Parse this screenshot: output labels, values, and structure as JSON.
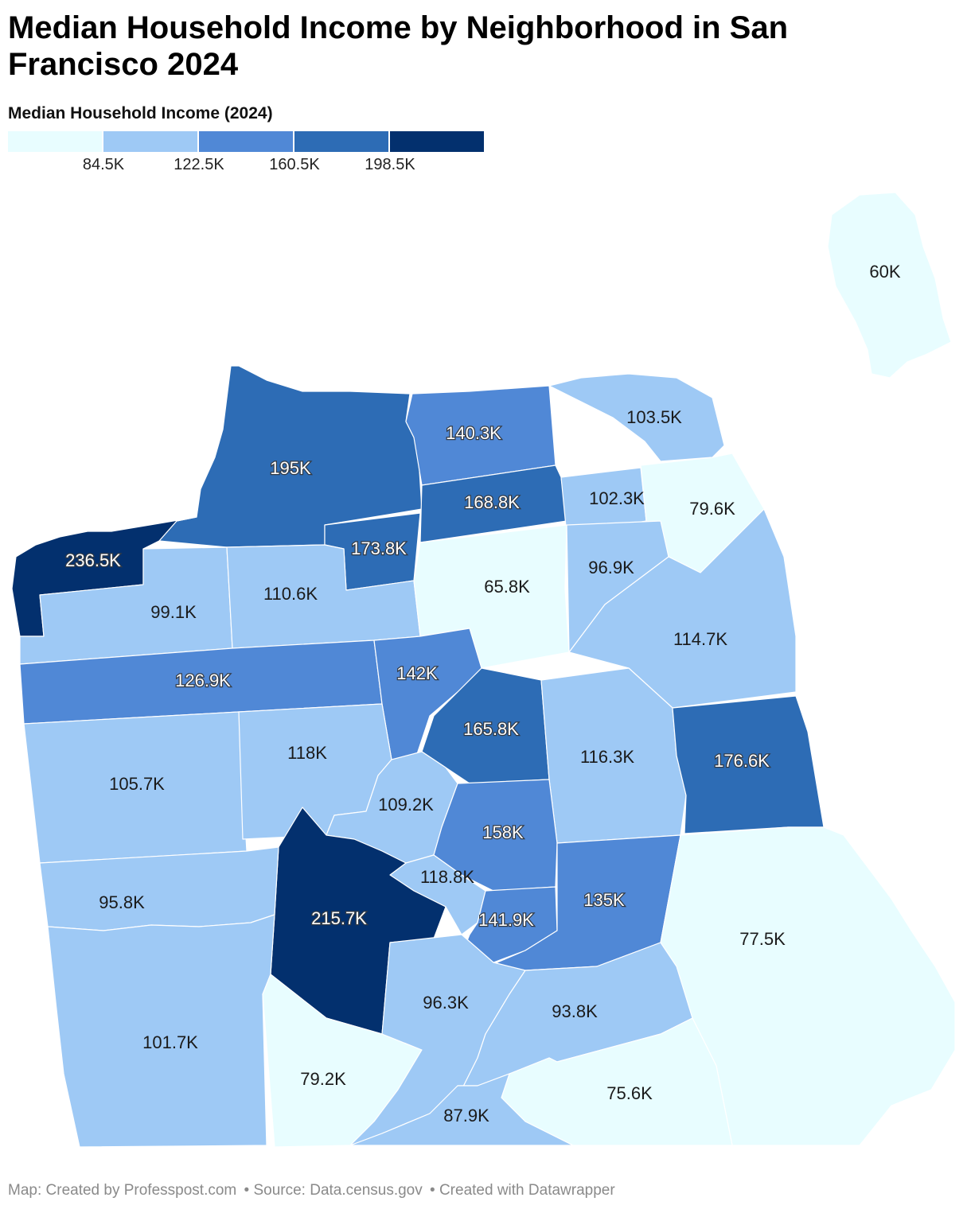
{
  "title": "Median Household Income by Neighborhood in San Francisco 2024",
  "legend": {
    "title": "Median Household Income (2024)",
    "colors": [
      "#e8fdff",
      "#9ec9f5",
      "#5088d6",
      "#2d6cb5",
      "#03306e"
    ],
    "ticks": [
      "84.5K",
      "122.5K",
      "160.5K",
      "198.5K"
    ]
  },
  "footer": {
    "map_credit": "Map: Created by Professpost.com",
    "source": "• Source: Data.census.gov",
    "tool": "• Created with Datawrapper"
  },
  "map_data": {
    "regions": [
      {
        "name": "island",
        "value": "60K"
      },
      {
        "name": "presidio",
        "value": "195K"
      },
      {
        "name": "sea-cliff",
        "value": "236.5K"
      },
      {
        "name": "marina",
        "value": "140.3K"
      },
      {
        "name": "north-beach",
        "value": "103.5K"
      },
      {
        "name": "pacific-heights",
        "value": "168.8K"
      },
      {
        "name": "nob-hill",
        "value": "102.3K"
      },
      {
        "name": "financial-district",
        "value": "79.6K"
      },
      {
        "name": "presidio-heights",
        "value": "173.8K"
      },
      {
        "name": "outer-richmond",
        "value": "99.1K"
      },
      {
        "name": "inner-richmond",
        "value": "110.6K"
      },
      {
        "name": "western-addition",
        "value": "65.8K"
      },
      {
        "name": "tenderloin",
        "value": "96.9K"
      },
      {
        "name": "south-of-market",
        "value": "114.7K"
      },
      {
        "name": "golden-gate-park",
        "value": "126.9K"
      },
      {
        "name": "haight-ashbury",
        "value": "142K"
      },
      {
        "name": "castro",
        "value": "165.8K"
      },
      {
        "name": "mission",
        "value": "116.3K"
      },
      {
        "name": "potrero-hill",
        "value": "176.6K"
      },
      {
        "name": "outer-sunset",
        "value": "105.7K"
      },
      {
        "name": "inner-sunset",
        "value": "118K"
      },
      {
        "name": "twin-peaks",
        "value": "109.2K"
      },
      {
        "name": "noe-valley",
        "value": "158K"
      },
      {
        "name": "glen-park",
        "value": "118.8K"
      },
      {
        "name": "west-of-twin-peaks",
        "value": "215.7K"
      },
      {
        "name": "diamond-heights",
        "value": "141.9K"
      },
      {
        "name": "bernal-heights",
        "value": "135K"
      },
      {
        "name": "bayview",
        "value": "77.5K"
      },
      {
        "name": "parkside",
        "value": "95.8K"
      },
      {
        "name": "lakeshore",
        "value": "101.7K"
      },
      {
        "name": "oceanview",
        "value": "79.2K"
      },
      {
        "name": "outer-mission",
        "value": "96.3K"
      },
      {
        "name": "excelsior",
        "value": "93.8K"
      },
      {
        "name": "visitacion-valley",
        "value": "75.6K"
      },
      {
        "name": "crocker-amazon",
        "value": "87.9K"
      }
    ]
  }
}
